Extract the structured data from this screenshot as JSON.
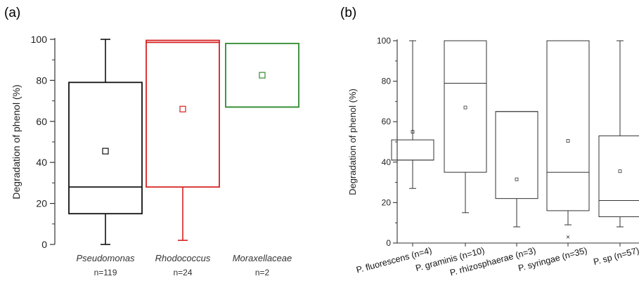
{
  "chart_data": [
    {
      "panel_label": "(a)",
      "type": "box",
      "ylabel": "Degradation of phenol (%)",
      "ylim": [
        0,
        100
      ],
      "y_ticks": [
        0,
        20,
        40,
        60,
        80,
        100
      ],
      "grid": false,
      "categories": [
        {
          "name": "Pseudomonas",
          "n_label": "n=119",
          "color": "#111111",
          "whisker_low": 0,
          "q1": 15,
          "median": 28,
          "q3": 79,
          "whisker_high": 100,
          "mean": 45.5,
          "outliers": []
        },
        {
          "name": "Rhodococcus",
          "n_label": "n=24",
          "color": "#d62020",
          "whisker_low": 2,
          "q1": 28,
          "median": 98.5,
          "q3": 99.5,
          "whisker_high": 99.5,
          "mean": 66,
          "outliers": []
        },
        {
          "name": "Moraxellaceae",
          "n_label": "n=2",
          "color": "#2e8b2e",
          "whisker_low": 67,
          "q1": 67,
          "median": 67,
          "q3": 98,
          "whisker_high": 98,
          "mean": 82.5,
          "outliers": []
        }
      ]
    },
    {
      "panel_label": "(b)",
      "type": "box",
      "ylabel": "Degradation of phenol (%)",
      "ylim": [
        0,
        100
      ],
      "y_ticks": [
        0,
        20,
        40,
        60,
        80,
        100
      ],
      "grid": false,
      "categories": [
        {
          "name": "P. fluorescens (n=4)",
          "color": "#333333",
          "whisker_low": 27,
          "q1": 41,
          "median": 41,
          "q3": 51,
          "whisker_high": 100,
          "mean": 55,
          "outliers": []
        },
        {
          "name": "P. graminis (n=10)",
          "color": "#333333",
          "whisker_low": 15,
          "q1": 35,
          "median": 79,
          "q3": 100,
          "whisker_high": 100,
          "mean": 67,
          "outliers": []
        },
        {
          "name": "P. rhizosphaerae (n=3)",
          "color": "#333333",
          "whisker_low": 8,
          "q1": 22,
          "median": 65,
          "q3": 65,
          "whisker_high": 65,
          "mean": 31.5,
          "outliers": []
        },
        {
          "name": "P. syringae (n=35)",
          "color": "#333333",
          "whisker_low": 9,
          "q1": 16,
          "median": 35,
          "q3": 100,
          "whisker_high": 100,
          "mean": 50.5,
          "outliers": [
            3
          ]
        },
        {
          "name": "P. sp (n=57)",
          "color": "#333333",
          "whisker_low": 8,
          "q1": 13,
          "median": 21,
          "q3": 53,
          "whisker_high": 100,
          "mean": 35.5,
          "outliers": []
        }
      ]
    }
  ]
}
